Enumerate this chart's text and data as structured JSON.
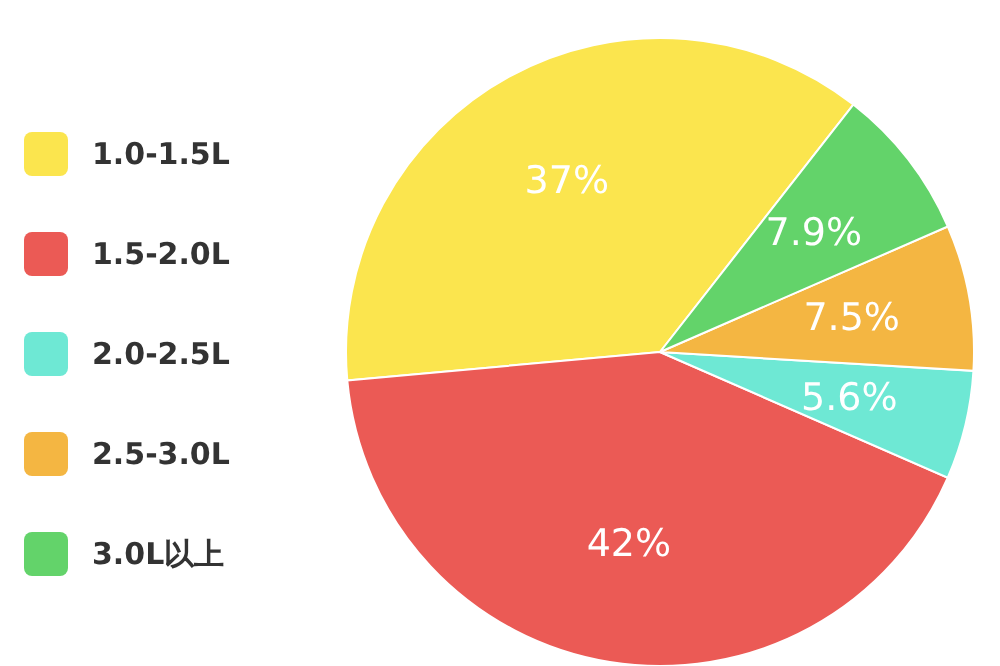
{
  "chart_data": {
    "type": "pie",
    "categories": [
      "1.0-1.5L",
      "1.5-2.0L",
      "2.0-2.5L",
      "2.5-3.0L",
      "3.0L以上"
    ],
    "values": [
      37,
      42,
      5.6,
      7.5,
      7.9
    ],
    "colors": [
      "#fbe54e",
      "#eb5a55",
      "#6ee8d4",
      "#f4b642",
      "#63d36a"
    ],
    "legend": "left",
    "value_labels": [
      "37%",
      "42%",
      "5.6%",
      "7.5%",
      "7.9%"
    ]
  }
}
